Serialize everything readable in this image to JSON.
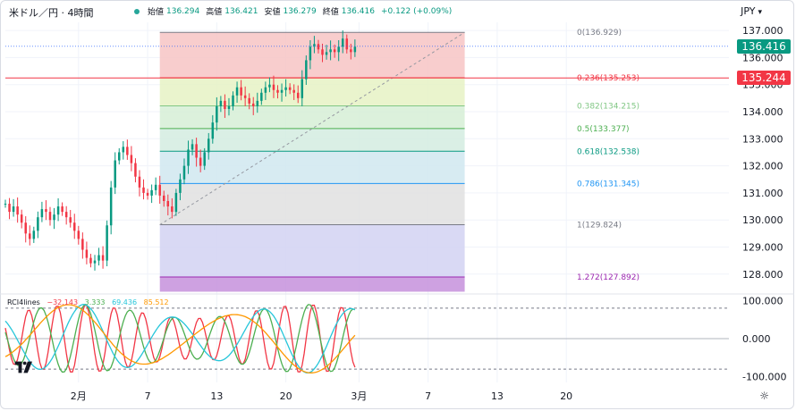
{
  "header": {
    "symbol": "米ドル／円 · 4時間",
    "ohlc": [
      {
        "k": "始値",
        "v": "136.294"
      },
      {
        "k": "高値",
        "v": "136.421"
      },
      {
        "k": "安値",
        "v": "136.279"
      },
      {
        "k": "終値",
        "v": "136.416"
      },
      {
        "k": "",
        "v": "+0.122 (+0.09%)"
      }
    ],
    "currency": "JPY",
    "currency_arrow": "▾"
  },
  "price_tags": {
    "current": {
      "text": "136.416",
      "color": "#089981",
      "value": 136.416
    },
    "line": {
      "text": "135.244",
      "color": "#f23645",
      "value": 135.244
    }
  },
  "colors": {
    "up": "#089981",
    "down": "#f23645",
    "grid": "#f0f3fa",
    "axis_text": "#131722"
  },
  "chart_data": [
    {
      "type": "candlestick",
      "title": "米ドル／円 · 4時間",
      "ylabel": "JPY",
      "ylim": [
        127.3,
        137.3
      ],
      "y_ticks": [
        "137.000",
        "136.000",
        "135.000",
        "134.000",
        "133.000",
        "132.000",
        "131.000",
        "130.000",
        "129.000",
        "128.000"
      ],
      "x_ticks": [
        "2月",
        "7",
        "13",
        "20",
        "3月",
        "7",
        "13",
        "20"
      ],
      "x_domain_index": [
        -18,
        160
      ],
      "x_tick_index": [
        0,
        17,
        34,
        51,
        69,
        86,
        103,
        120
      ],
      "close_series_index_start": -18,
      "close_series": [
        130.6,
        130.3,
        130.5,
        130.2,
        129.9,
        129.5,
        129.3,
        129.6,
        130.1,
        130.4,
        130.3,
        130.0,
        130.2,
        130.5,
        130.3,
        130.1,
        129.9,
        129.6,
        129.3,
        128.9,
        128.6,
        128.4,
        128.5,
        128.7,
        128.5,
        129.8,
        131.2,
        132.2,
        132.5,
        132.7,
        132.4,
        132.1,
        131.6,
        131.2,
        131.0,
        130.9,
        131.1,
        131.3,
        130.9,
        130.7,
        130.5,
        130.3,
        131.0,
        131.5,
        132.0,
        132.6,
        132.8,
        132.3,
        132.0,
        132.5,
        133.0,
        133.6,
        134.2,
        134.4,
        134.1,
        134.2,
        134.6,
        134.9,
        134.6,
        134.5,
        134.3,
        134.2,
        134.4,
        134.7,
        134.9,
        135.0,
        134.8,
        134.7,
        134.8,
        134.9,
        134.8,
        134.7,
        134.5,
        135.2,
        135.9,
        136.4,
        136.5,
        136.3,
        136.1,
        136.2,
        136.3,
        136.2,
        136.4,
        136.7,
        136.3,
        136.2,
        136.4
      ],
      "annotations": {
        "fibonacci": [
          {
            "label": "0(136.929)",
            "value": 136.929,
            "color": "#787b86"
          },
          {
            "label": "0.236(135.253)",
            "value": 135.253,
            "color": "#f23645"
          },
          {
            "label": "0.382(134.215)",
            "value": 134.215,
            "color": "#81c784"
          },
          {
            "label": "0.5(133.377)",
            "value": 133.377,
            "color": "#4caf50"
          },
          {
            "label": "0.618(132.538)",
            "value": 132.538,
            "color": "#089981"
          },
          {
            "label": "0.786(131.345)",
            "value": 131.345,
            "color": "#2196f3"
          },
          {
            "label": "1(129.824)",
            "value": 129.824,
            "color": "#787b86"
          },
          {
            "label": "1.272(127.892)",
            "value": 127.892,
            "color": "#9c27b0"
          }
        ],
        "fib_start_index": 20,
        "fib_end_index": 95,
        "fib_zone_colors": [
          "#f7c4c4",
          "#e6f2c4",
          "#d6efd6",
          "#d4ece0",
          "#d0e8f0",
          "#e0e0e0",
          "#d2d2f2",
          "#c690dc"
        ],
        "trend_line": {
          "from_index": 20,
          "from_value": 129.824,
          "to_index": 95,
          "to_value": 136.929
        },
        "horizontal_line_value": 135.244,
        "dotted_line_value": 136.416
      }
    },
    {
      "type": "line",
      "title": "RCI4lines",
      "ylim": [
        -115,
        115
      ],
      "y_ticks": [
        "100.000",
        "0.000",
        "-100.000"
      ],
      "series": [
        {
          "name": "RCI4lines 1",
          "label": "−32.143",
          "color": "#f23645",
          "period": 7,
          "phase": 0.0
        },
        {
          "name": "RCI4lines 2",
          "label": "3.333",
          "color": "#4caf50",
          "period": 11,
          "phase": 0.6
        },
        {
          "name": "RCI4lines 3",
          "label": "69.436",
          "color": "#26c6da",
          "period": 22,
          "phase": 1.2
        },
        {
          "name": "RCI4lines 4",
          "label": "85.512",
          "color": "#ff9800",
          "period": 40,
          "phase": 2.0
        }
      ],
      "levels": [
        80,
        -80,
        0
      ]
    }
  ]
}
